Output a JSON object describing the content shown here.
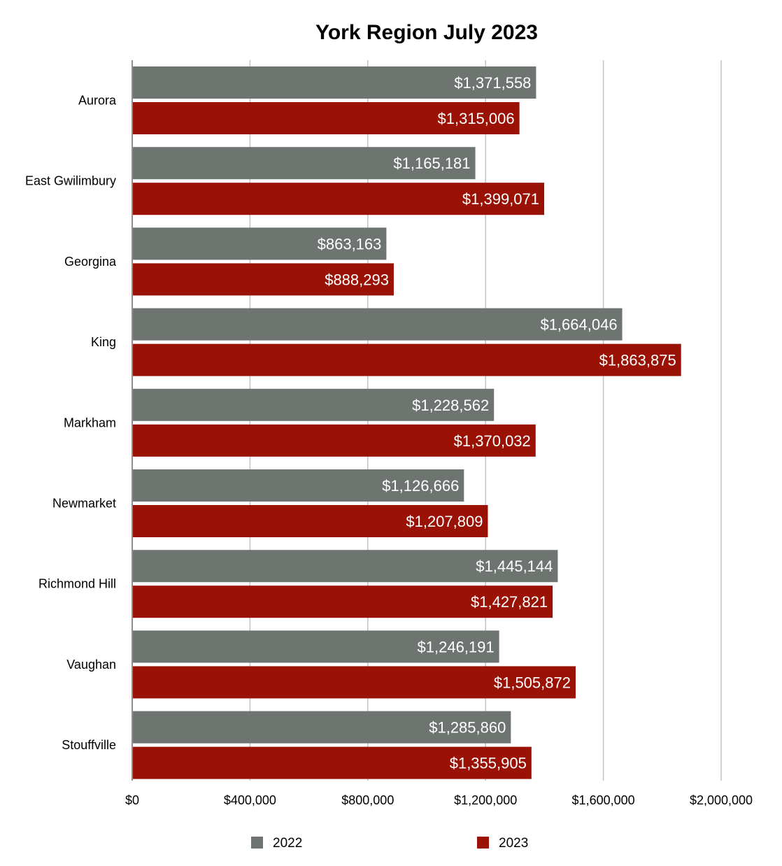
{
  "chart_data": {
    "type": "bar",
    "orientation": "horizontal",
    "title": "York Region July 2023",
    "categories": [
      "Aurora",
      "East Gwilimbury",
      "Georgina",
      "King",
      "Markham",
      "Newmarket",
      "Richmond Hill",
      "Vaughan",
      "Stouffville"
    ],
    "series": [
      {
        "name": "2022",
        "color": "#6e7470",
        "values": [
          1371558,
          1165181,
          863163,
          1664046,
          1228562,
          1126666,
          1445144,
          1246191,
          1285860
        ],
        "labels": [
          "$1,371,558",
          "$1,165,181",
          "$863,163",
          "$1,664,046",
          "$1,228,562",
          "$1,126,666",
          "$1,445,144",
          "$1,246,191",
          "$1,285,860"
        ]
      },
      {
        "name": "2023",
        "color": "#9a1205",
        "values": [
          1315006,
          1399071,
          888293,
          1863875,
          1370032,
          1207809,
          1427821,
          1505872,
          1355905
        ],
        "labels": [
          "$1,315,006",
          "$1,399,071",
          "$888,293",
          "$1,863,875",
          "$1,370,032",
          "$1,207,809",
          "$1,427,821",
          "$1,505,872",
          "$1,355,905"
        ]
      }
    ],
    "xlim": [
      0,
      2000000
    ],
    "xticks": [
      0,
      400000,
      800000,
      1200000,
      1600000,
      2000000
    ],
    "xtick_labels": [
      "$0",
      "$400,000",
      "$800,000",
      "$1,200,000",
      "$1,600,000",
      "$2,000,000"
    ],
    "xlabel": "",
    "ylabel": "",
    "grid": true,
    "legend_position": "bottom"
  }
}
